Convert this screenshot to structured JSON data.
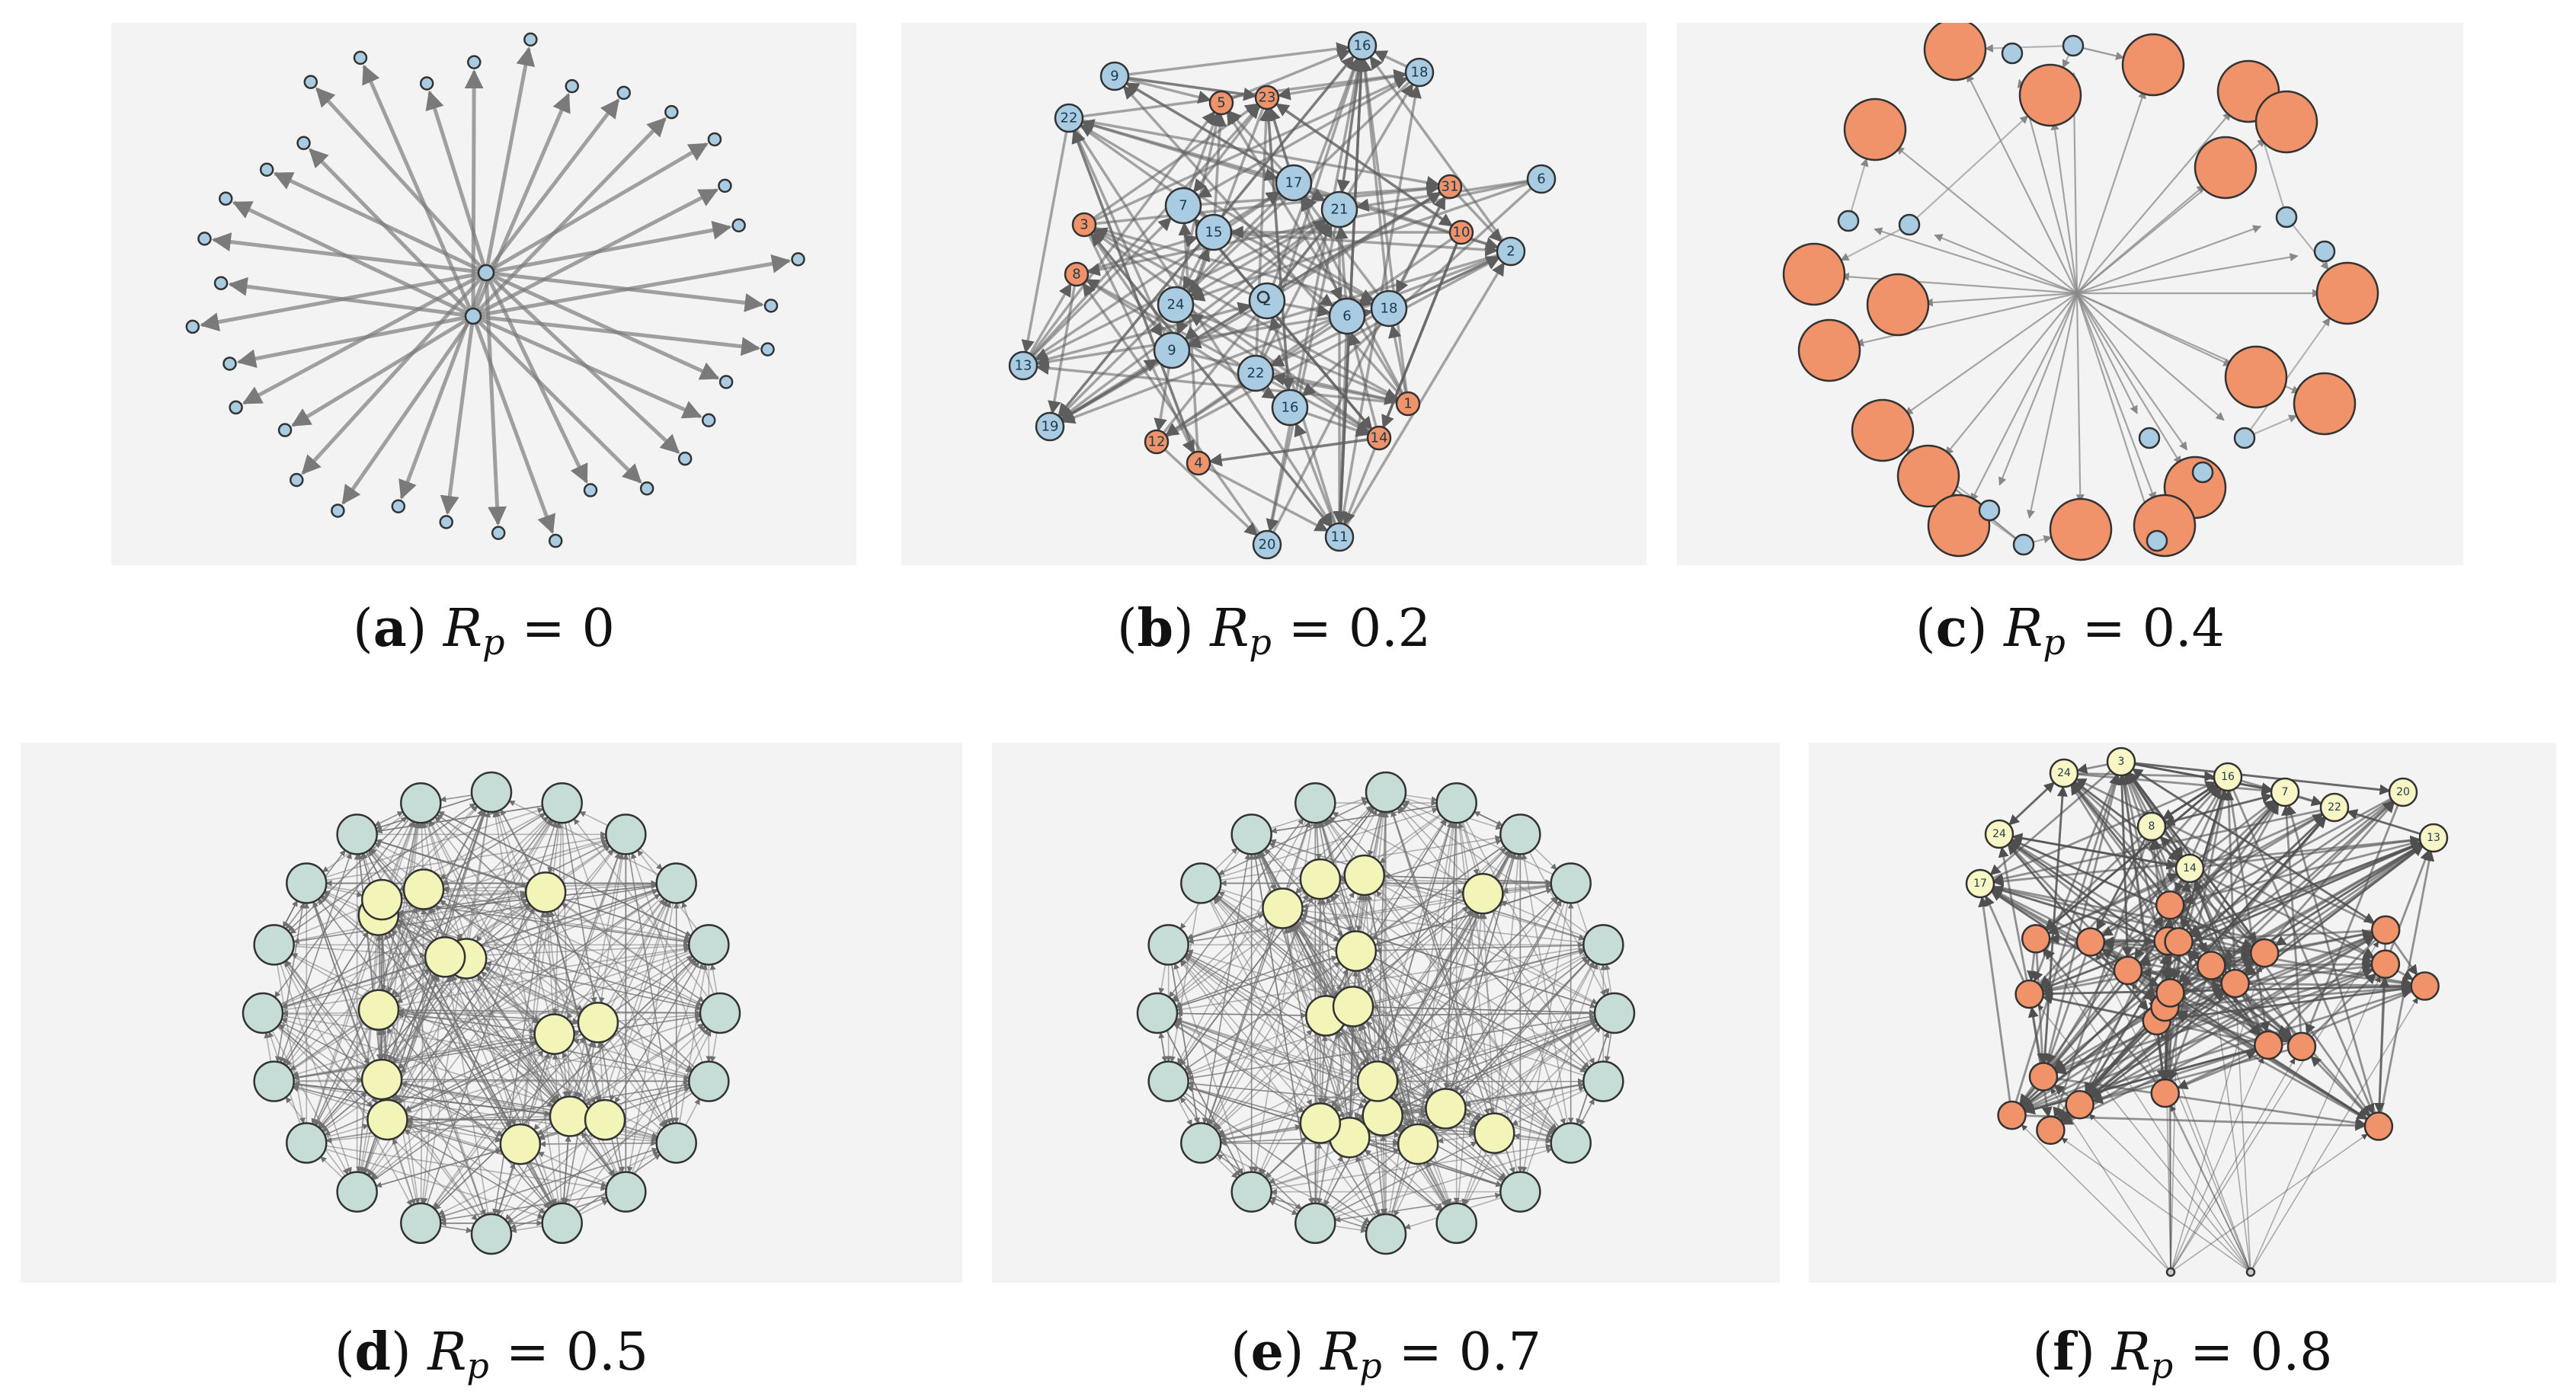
{
  "panels": [
    {
      "id": "a",
      "letter": "a",
      "param": "R",
      "sub": "p",
      "value": "0",
      "style": "star",
      "fill": "#a9cce3",
      "edge": "#7a7a7a"
    },
    {
      "id": "b",
      "letter": "b",
      "param": "R",
      "sub": "p",
      "value": "0.2",
      "style": "pentagon",
      "fill": "#a9cce3",
      "accent": "#f0926a",
      "edge": "#5e5e5e",
      "labels": [
        "9",
        "22",
        "16",
        "18",
        "6",
        "2",
        "13",
        "19",
        "20",
        "11",
        "5",
        "23",
        "31",
        "10",
        "3",
        "8",
        "12",
        "4",
        "14",
        "1",
        "7",
        "15",
        "17",
        "21",
        "24"
      ]
    },
    {
      "id": "c",
      "letter": "c",
      "param": "R",
      "sub": "p",
      "value": "0.4",
      "style": "clusters",
      "fill": "#f0926a",
      "accent": "#a9cce3",
      "edge": "#888888"
    },
    {
      "id": "d",
      "letter": "d",
      "param": "R",
      "sub": "p",
      "value": "0.5",
      "style": "dense",
      "fill": "#c6dcd6",
      "inner": "#f3f5b8",
      "edge": "#6f6f6f"
    },
    {
      "id": "e",
      "letter": "e",
      "param": "R",
      "sub": "p",
      "value": "0.7",
      "style": "dense",
      "fill": "#c6dcd6",
      "inner": "#f3f5b8",
      "edge": "#6f6f6f"
    },
    {
      "id": "f",
      "letter": "f",
      "param": "R",
      "sub": "p",
      "value": "0.8",
      "style": "split",
      "fill": "#f0926a",
      "top": "#f7f6c4",
      "edge": "#4f4f4f",
      "labels": [
        "24",
        "3",
        "16",
        "7",
        "22",
        "20",
        "13",
        "24",
        "17",
        "8",
        "14"
      ]
    }
  ]
}
